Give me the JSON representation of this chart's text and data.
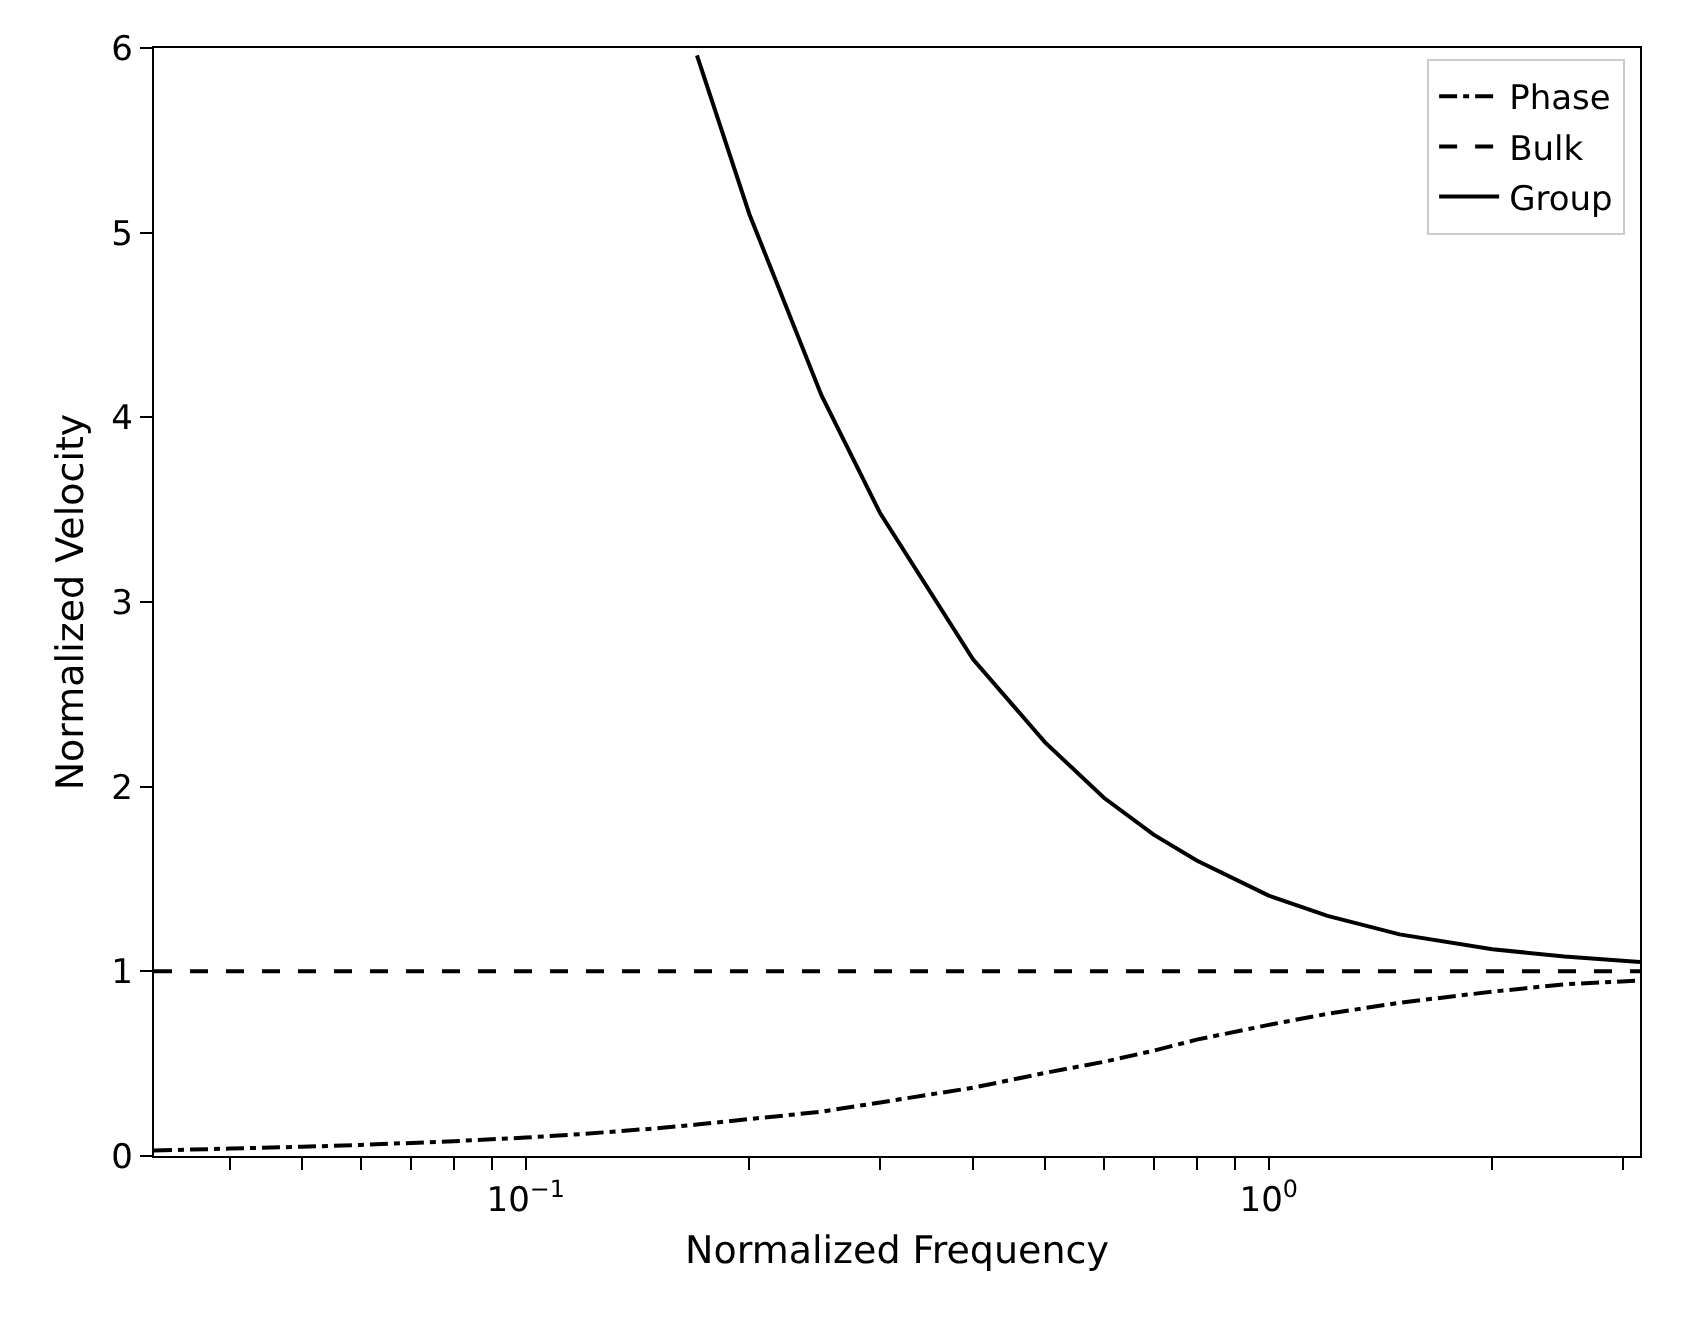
{
  "chart_data": {
    "type": "line",
    "xlabel": "Normalized Frequency",
    "ylabel": "Normalized Velocity",
    "log": "x",
    "xlim": [
      0.0316,
      3.16
    ],
    "ylim": [
      0,
      6
    ],
    "xticks": [
      {
        "value": 0.04,
        "label": null
      },
      {
        "value": 0.05,
        "label": null
      },
      {
        "value": 0.06,
        "label": null
      },
      {
        "value": 0.07,
        "label": null
      },
      {
        "value": 0.08,
        "label": null
      },
      {
        "value": 0.09,
        "label": null
      },
      {
        "value": 0.1,
        "label": "10$^{−1}$"
      },
      {
        "value": 0.2,
        "label": null
      },
      {
        "value": 0.3,
        "label": null
      },
      {
        "value": 0.4,
        "label": null
      },
      {
        "value": 0.5,
        "label": null
      },
      {
        "value": 0.6,
        "label": null
      },
      {
        "value": 0.7,
        "label": null
      },
      {
        "value": 0.8,
        "label": null
      },
      {
        "value": 0.9,
        "label": null
      },
      {
        "value": 1,
        "label": "10$^{0}$"
      },
      {
        "value": 2,
        "label": null
      },
      {
        "value": 3,
        "label": null
      }
    ],
    "yticks": [
      0,
      1,
      2,
      3,
      4,
      5,
      6
    ],
    "grid": false,
    "legend": "top right",
    "marker": "none",
    "series": [
      {
        "name": "Phase",
        "color": "#000000",
        "line_style": "dashdot",
        "x": [
          0.0316,
          0.04,
          0.05,
          0.06,
          0.08,
          0.1,
          0.12,
          0.15,
          0.17,
          0.2,
          0.25,
          0.3,
          0.4,
          0.5,
          0.6,
          0.7,
          0.8,
          1,
          1.2,
          1.5,
          2,
          2.5,
          3.16
        ],
        "values": [
          0.03,
          0.04,
          0.05,
          0.06,
          0.08,
          0.1,
          0.12,
          0.15,
          0.17,
          0.2,
          0.24,
          0.29,
          0.37,
          0.45,
          0.51,
          0.57,
          0.63,
          0.71,
          0.77,
          0.83,
          0.89,
          0.93,
          0.95
        ]
      },
      {
        "name": "Bulk",
        "color": "#000000",
        "line_style": "dashed",
        "x": [
          0.0316,
          3.16
        ],
        "values": [
          1,
          1
        ]
      },
      {
        "name": "Group",
        "color": "#000000",
        "line_style": "solid",
        "x": [
          0.17,
          0.2,
          0.25,
          0.3,
          0.4,
          0.5,
          0.6,
          0.7,
          0.8,
          1,
          1.2,
          1.5,
          2,
          2.5,
          3.16
        ],
        "values": [
          5.96,
          5.1,
          4.12,
          3.48,
          2.69,
          2.24,
          1.94,
          1.74,
          1.6,
          1.41,
          1.3,
          1.2,
          1.12,
          1.08,
          1.05
        ]
      }
    ]
  }
}
